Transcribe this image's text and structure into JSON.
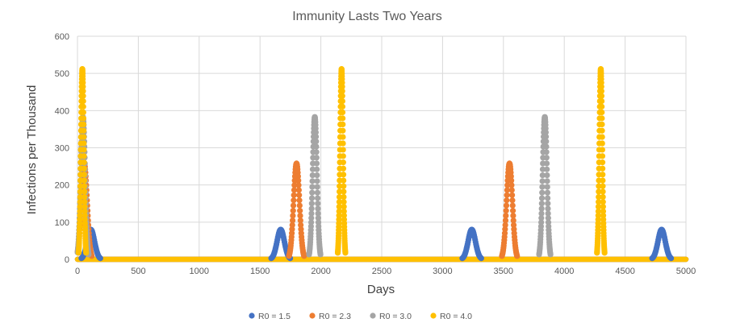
{
  "chart_data": {
    "type": "scatter",
    "title": "Immunity Lasts Two Years",
    "xlabel": "Days",
    "ylabel": "Infections per Thousand",
    "xlim": [
      0,
      5000
    ],
    "ylim": [
      0,
      600
    ],
    "x_ticks": [
      0,
      500,
      1000,
      1500,
      2000,
      2500,
      3000,
      3500,
      4000,
      4500,
      5000
    ],
    "y_ticks": [
      0,
      100,
      200,
      300,
      400,
      500,
      600
    ],
    "grid": true,
    "legend_position": "bottom",
    "series": [
      {
        "name": "R0 = 1.5",
        "color": "#4472C4",
        "peaks": [
          {
            "day": 110,
            "height": 80
          },
          {
            "day": 1670,
            "height": 80
          },
          {
            "day": 3240,
            "height": 80
          },
          {
            "day": 4800,
            "height": 80
          }
        ]
      },
      {
        "name": "R0 = 2.3",
        "color": "#ED7D31",
        "peaks": [
          {
            "day": 55,
            "height": 258
          },
          {
            "day": 1800,
            "height": 258
          },
          {
            "day": 3550,
            "height": 258
          }
        ]
      },
      {
        "name": "R0 = 3.0",
        "color": "#A5A5A5",
        "peaks": [
          {
            "day": 45,
            "height": 383
          },
          {
            "day": 1950,
            "height": 383
          },
          {
            "day": 3840,
            "height": 383
          }
        ]
      },
      {
        "name": "R0 = 4.0",
        "color": "#FFC000",
        "peaks": [
          {
            "day": 40,
            "height": 512
          },
          {
            "day": 2170,
            "height": 512
          },
          {
            "day": 4300,
            "height": 512
          }
        ]
      }
    ]
  }
}
